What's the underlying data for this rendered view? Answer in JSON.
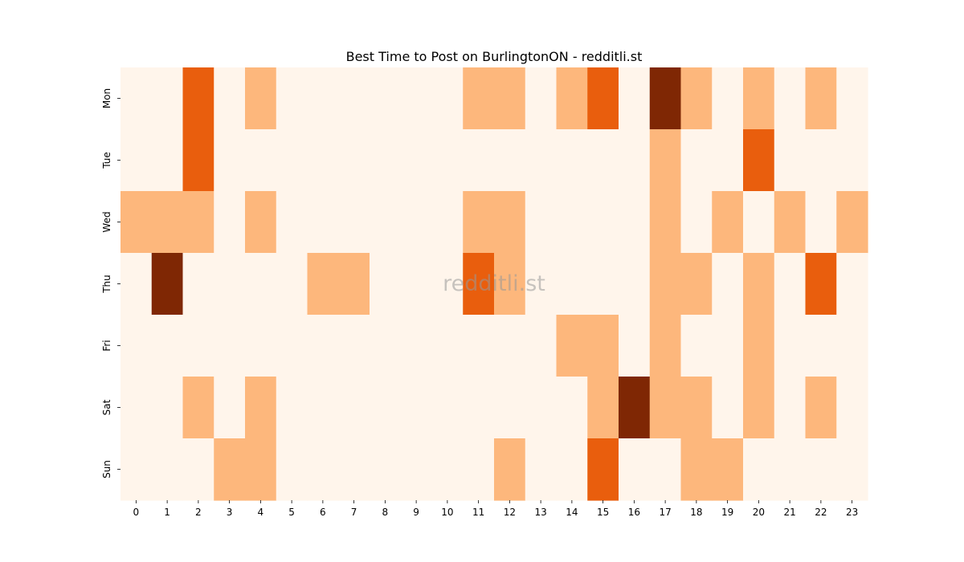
{
  "chart_data": {
    "type": "heatmap",
    "title": "Best Time to Post on BurlingtonON - redditli.st",
    "watermark": "redditli.st",
    "xlabel": "",
    "ylabel": "",
    "x": [
      "0",
      "1",
      "2",
      "3",
      "4",
      "5",
      "6",
      "7",
      "8",
      "9",
      "10",
      "11",
      "12",
      "13",
      "14",
      "15",
      "16",
      "17",
      "18",
      "19",
      "20",
      "21",
      "22",
      "23"
    ],
    "y": [
      "Mon",
      "Tue",
      "Wed",
      "Thu",
      "Fri",
      "Sat",
      "Sun"
    ],
    "values": [
      [
        0,
        0,
        2,
        0,
        1,
        0,
        0,
        0,
        0,
        0,
        0,
        1,
        1,
        0,
        1,
        2,
        0,
        3,
        1,
        0,
        1,
        0,
        1,
        0
      ],
      [
        0,
        0,
        2,
        0,
        0,
        0,
        0,
        0,
        0,
        0,
        0,
        0,
        0,
        0,
        0,
        0,
        0,
        1,
        0,
        0,
        2,
        0,
        0,
        0
      ],
      [
        1,
        1,
        1,
        0,
        1,
        0,
        0,
        0,
        0,
        0,
        0,
        1,
        1,
        0,
        0,
        0,
        0,
        1,
        0,
        1,
        0,
        1,
        0,
        1
      ],
      [
        0,
        3,
        0,
        0,
        0,
        0,
        1,
        1,
        0,
        0,
        0,
        2,
        1,
        0,
        0,
        0,
        0,
        1,
        1,
        0,
        1,
        0,
        2,
        0
      ],
      [
        0,
        0,
        0,
        0,
        0,
        0,
        0,
        0,
        0,
        0,
        0,
        0,
        0,
        0,
        1,
        1,
        0,
        1,
        0,
        0,
        1,
        0,
        0,
        0
      ],
      [
        0,
        0,
        1,
        0,
        1,
        0,
        0,
        0,
        0,
        0,
        0,
        0,
        0,
        0,
        0,
        1,
        3,
        1,
        1,
        0,
        1,
        0,
        1,
        0
      ],
      [
        0,
        0,
        0,
        1,
        1,
        0,
        0,
        0,
        0,
        0,
        0,
        0,
        1,
        0,
        0,
        2,
        0,
        0,
        1,
        1,
        0,
        0,
        0,
        0
      ]
    ],
    "colormap": [
      "#fff5eb",
      "#fdb77c",
      "#e95e0d",
      "#7f2704"
    ],
    "grid": false,
    "legend": "none"
  }
}
